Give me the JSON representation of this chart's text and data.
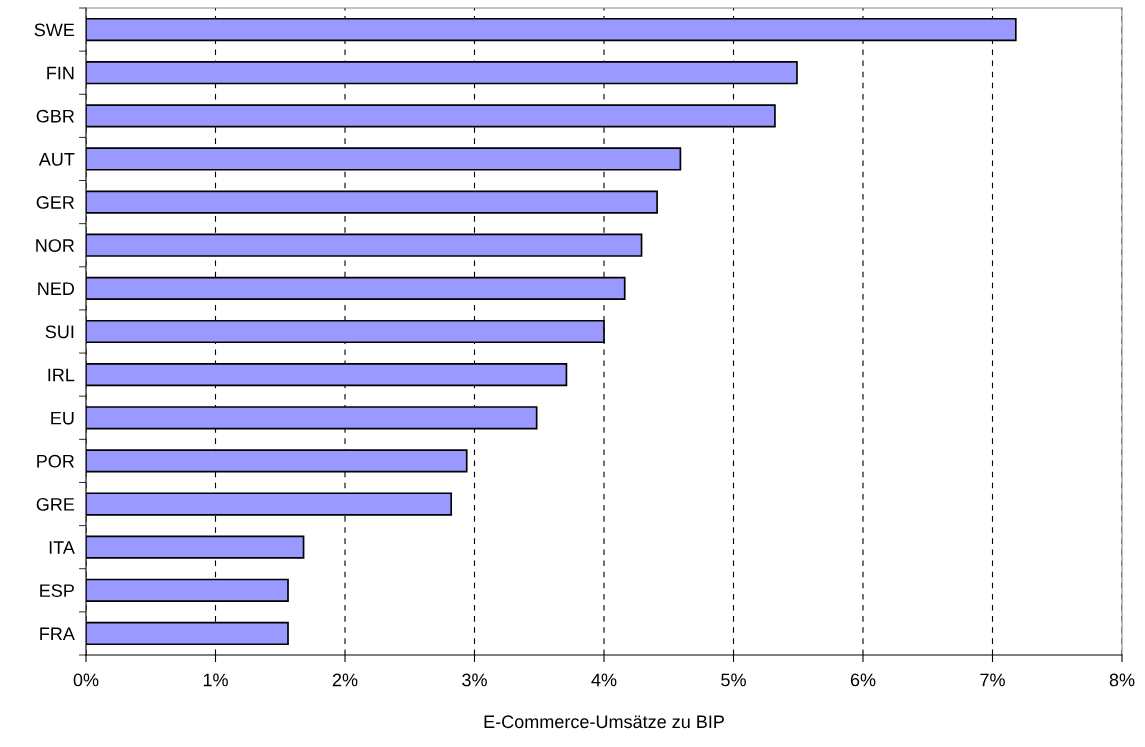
{
  "chart_data": {
    "type": "bar",
    "orientation": "horizontal",
    "xlabel": "E-Commerce-Umsätze zu BIP",
    "categories": [
      "SWE",
      "FIN",
      "GBR",
      "AUT",
      "GER",
      "NOR",
      "NED",
      "SUI",
      "IRL",
      "EU",
      "POR",
      "GRE",
      "ITA",
      "ESP",
      "FRA"
    ],
    "values": [
      7.18,
      5.49,
      5.32,
      4.59,
      4.41,
      4.29,
      4.16,
      4.0,
      3.71,
      3.48,
      2.94,
      2.82,
      1.68,
      1.56,
      1.56
    ],
    "color": "#9999ff",
    "xlim": [
      0,
      8
    ],
    "xticks": [
      {
        "value": 0,
        "label": "0%"
      },
      {
        "value": 1,
        "label": "1%"
      },
      {
        "value": 2,
        "label": "2%"
      },
      {
        "value": 3,
        "label": "3%"
      },
      {
        "value": 4,
        "label": "4%"
      },
      {
        "value": 5,
        "label": "5%"
      },
      {
        "value": 6,
        "label": "6%"
      },
      {
        "value": 7,
        "label": "7%"
      },
      {
        "value": 8,
        "label": "8%"
      }
    ],
    "grid": "x",
    "legend": false
  }
}
